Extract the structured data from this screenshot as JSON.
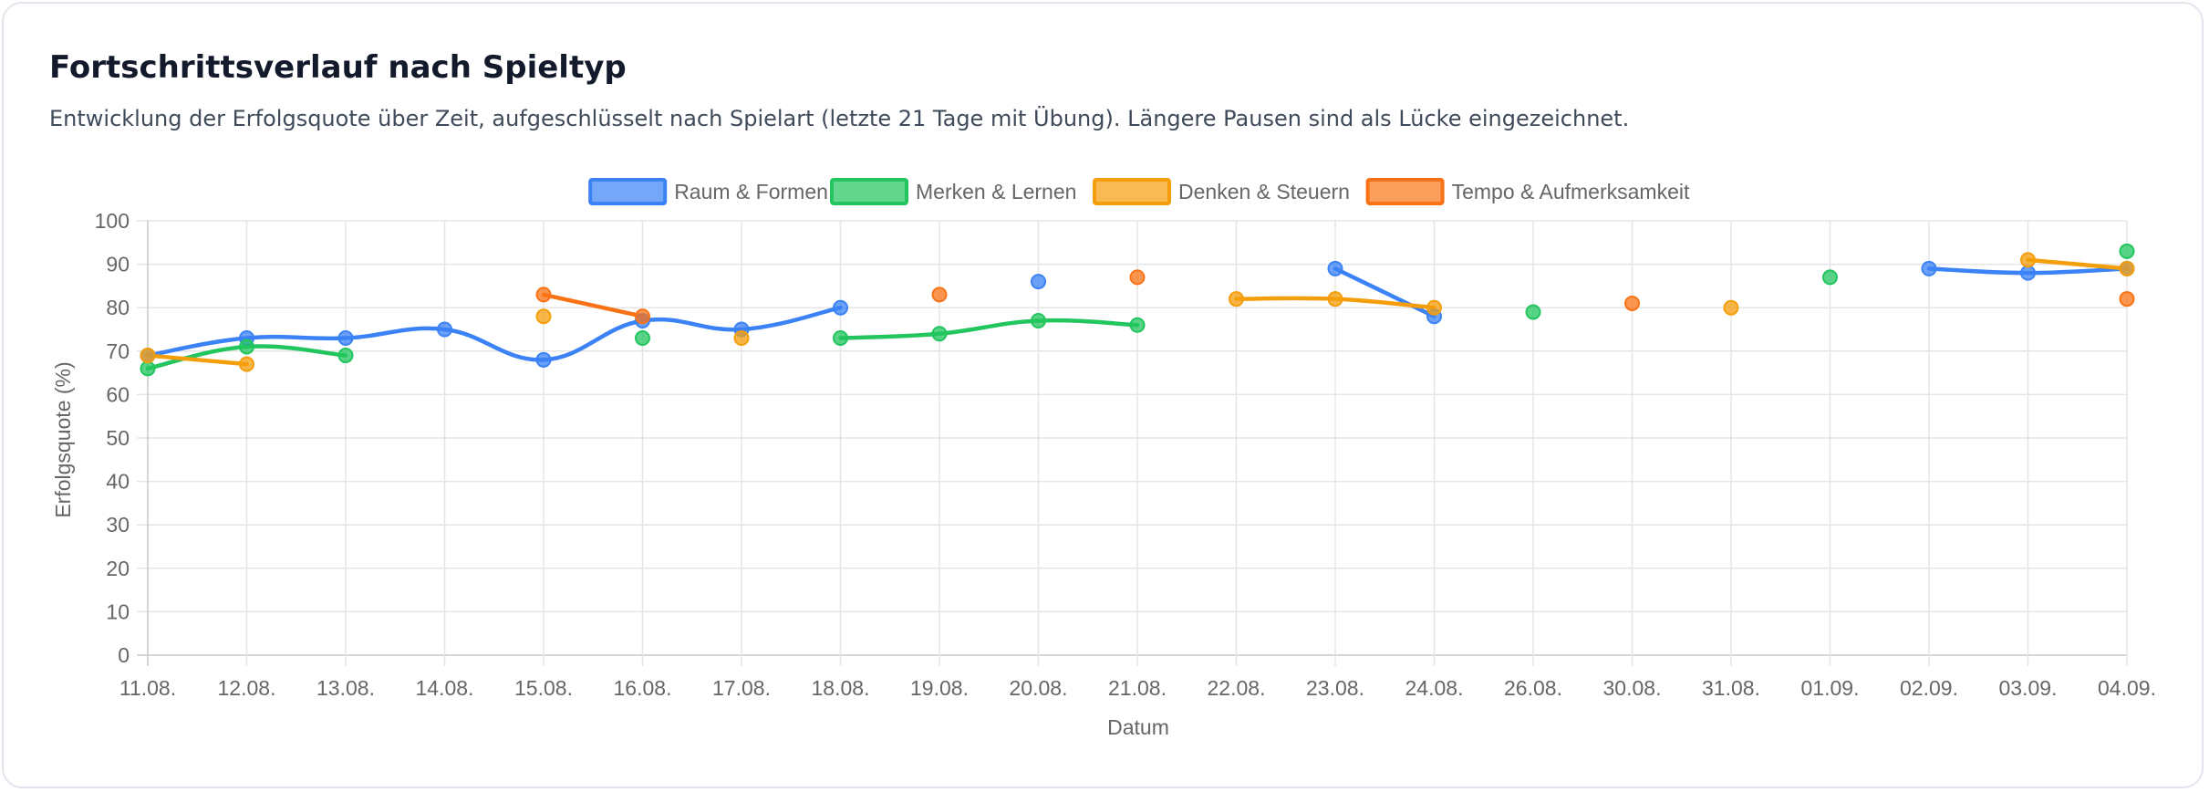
{
  "card": {
    "title": "Fortschrittsverlauf nach Spieltyp",
    "subtitle": "Entwicklung der Erfolgsquote über Zeit, aufgeschlüsselt nach Spielart (letzte 21 Tage mit Übung). Längere Pausen sind als Lücke eingezeichnet."
  },
  "chart_data": {
    "type": "line",
    "xlabel": "Datum",
    "ylabel": "Erfolgsquote (%)",
    "ylim": [
      0,
      100
    ],
    "ytick_step": 10,
    "grid": true,
    "legend_position": "top-center",
    "categories": [
      "11.08.",
      "12.08.",
      "13.08.",
      "14.08.",
      "15.08.",
      "16.08.",
      "17.08.",
      "18.08.",
      "19.08.",
      "20.08.",
      "21.08.",
      "22.08.",
      "23.08.",
      "24.08.",
      "26.08.",
      "30.08.",
      "31.08.",
      "01.09.",
      "02.09.",
      "03.09.",
      "04.09."
    ],
    "series": [
      {
        "name": "Raum & Formen",
        "color": "#3b82f6",
        "values": [
          69,
          73,
          73,
          75,
          68,
          77,
          75,
          80,
          null,
          86,
          null,
          null,
          89,
          78,
          null,
          null,
          null,
          null,
          89,
          88,
          89
        ]
      },
      {
        "name": "Merken & Lernen",
        "color": "#22c55e",
        "values": [
          66,
          71,
          69,
          null,
          null,
          73,
          null,
          73,
          74,
          77,
          76,
          null,
          null,
          null,
          79,
          null,
          null,
          87,
          null,
          null,
          93
        ]
      },
      {
        "name": "Denken & Steuern",
        "color": "#f59e0b",
        "values": [
          69,
          67,
          null,
          null,
          78,
          null,
          73,
          null,
          null,
          null,
          null,
          82,
          82,
          80,
          null,
          null,
          80,
          null,
          null,
          91,
          89
        ]
      },
      {
        "name": "Tempo & Aufmerksamkeit",
        "color": "#f97316",
        "values": [
          null,
          null,
          null,
          null,
          83,
          78,
          null,
          null,
          83,
          null,
          87,
          null,
          null,
          null,
          null,
          81,
          null,
          null,
          null,
          null,
          82
        ]
      }
    ]
  }
}
